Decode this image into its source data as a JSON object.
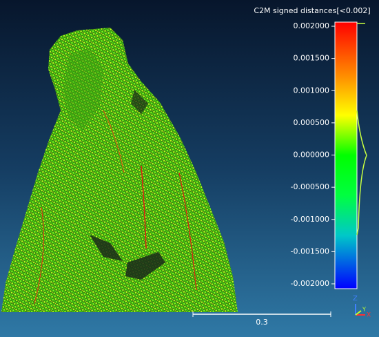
{
  "color_scale": {
    "title": "C2M signed distances[<0.002]",
    "ticks": [
      "0.002000",
      "0.001500",
      "0.001000",
      "0.000500",
      "0.000000",
      "-0.000500",
      "-0.001000",
      "-0.001500",
      "-0.002000"
    ]
  },
  "scale_bar": {
    "label": "0.3"
  },
  "axes": {
    "z": "Z",
    "x": "X",
    "y": "Y"
  }
}
